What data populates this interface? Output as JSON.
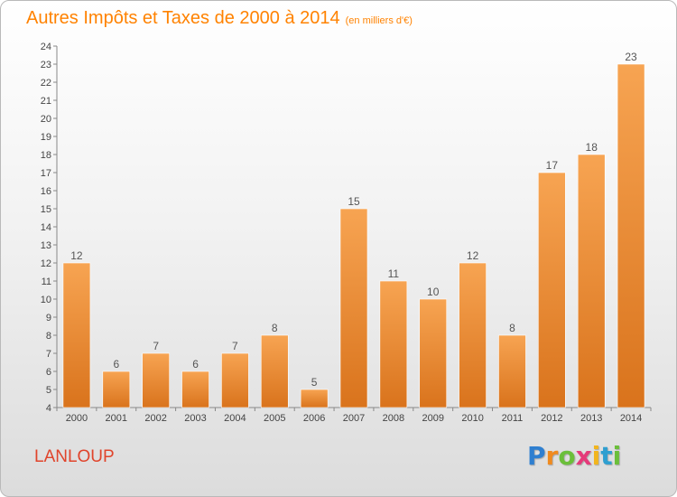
{
  "title": "Autres Impôts et Taxes de 2000 à 2014",
  "title_unit": "(en milliers d'€)",
  "place": "LANLOUP",
  "brand": {
    "letters": [
      "P",
      "r",
      "o",
      "x",
      "i",
      "t",
      "i"
    ],
    "colors": [
      "#2f7fd0",
      "#f08a1e",
      "#6bbf3a",
      "#e53a7a",
      "#f2b51e",
      "#2f9fd0",
      "#6bbf3a"
    ]
  },
  "colors": {
    "bar": "#f5a04a",
    "bar_dark": "#d9731c",
    "title": "#ff8200",
    "place": "#e0442b"
  },
  "chart_data": {
    "type": "bar",
    "categories": [
      "2000",
      "2001",
      "2002",
      "2003",
      "2004",
      "2005",
      "2006",
      "2007",
      "2008",
      "2009",
      "2010",
      "2011",
      "2012",
      "2013",
      "2014"
    ],
    "values": [
      12,
      6,
      7,
      6,
      7,
      8,
      5,
      15,
      11,
      10,
      12,
      8,
      17,
      18,
      23
    ],
    "ylim": [
      4,
      24
    ],
    "yticks": [
      4,
      5,
      6,
      7,
      8,
      9,
      10,
      11,
      12,
      13,
      14,
      15,
      16,
      17,
      18,
      19,
      20,
      21,
      22,
      23,
      24
    ],
    "grid": false,
    "data_labels": true
  }
}
